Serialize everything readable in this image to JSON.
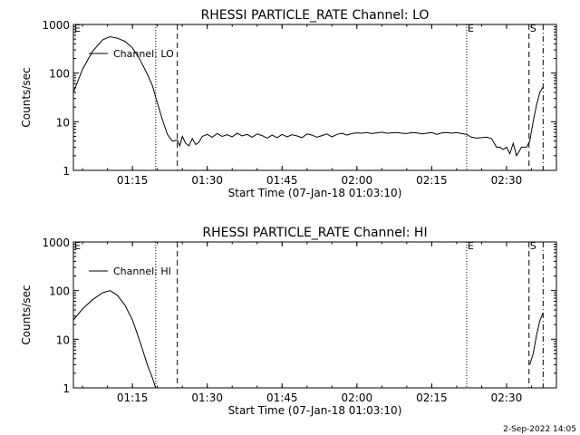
{
  "footer": {
    "date_text": "2-Sep-2022 14:05"
  },
  "chart_data": [
    {
      "type": "line",
      "title": "RHESSI PARTICLE_RATE Channel: LO",
      "xlabel": "Start Time (07-Jan-18 01:03:10)",
      "ylabel": "Counts/sec",
      "xlim": [
        "01:03:10",
        "02:40:00"
      ],
      "ylim": [
        1,
        1000
      ],
      "yscale": "log",
      "xticks": [
        "01:15",
        "01:30",
        "01:45",
        "02:00",
        "02:15",
        "02:30"
      ],
      "yticks": [
        "1",
        "10",
        "100",
        "1000"
      ],
      "legend": {
        "position": "top-left",
        "entries": [
          "Channel: LO"
        ]
      },
      "markers": [
        {
          "label": "E",
          "time": "01:03:10",
          "style": "dotted"
        },
        {
          "time": "01:19:40",
          "style": "dotted"
        },
        {
          "time": "01:24:00",
          "style": "dashed"
        },
        {
          "label": "E",
          "time": "02:22:00",
          "style": "dotted"
        },
        {
          "label": "S",
          "time": "02:34:30",
          "style": "dashed"
        },
        {
          "time": "02:37:20",
          "style": "dashdot"
        }
      ],
      "series": [
        {
          "name": "Channel: LO",
          "x": [
            "01:03:10",
            "01:05:00",
            "01:07:00",
            "01:09:00",
            "01:10:30",
            "01:12:00",
            "01:13:30",
            "01:15:00",
            "01:16:30",
            "01:18:00",
            "01:19:00",
            "01:20:00",
            "01:21:00",
            "01:22:00",
            "01:23:00",
            "01:24:00",
            "01:24:30",
            "01:25:00",
            "01:25:40",
            "01:26:20",
            "01:27:00",
            "01:27:40",
            "01:28:20",
            "01:29:00",
            "01:30:00",
            "01:31:00",
            "01:32:00",
            "01:33:00",
            "01:34:00",
            "01:35:00",
            "01:36:00",
            "01:37:00",
            "01:38:00",
            "01:39:00",
            "01:40:00",
            "01:41:00",
            "01:42:00",
            "01:43:00",
            "01:44:00",
            "01:45:00",
            "01:46:00",
            "01:47:00",
            "01:48:00",
            "01:49:00",
            "01:50:00",
            "01:51:00",
            "01:52:00",
            "01:53:00",
            "01:54:00",
            "01:55:00",
            "01:56:00",
            "01:57:00",
            "01:58:00",
            "01:59:00",
            "02:00:00",
            "02:01:00",
            "02:02:00",
            "02:03:00",
            "02:04:00",
            "02:05:00",
            "02:06:00",
            "02:07:00",
            "02:08:00",
            "02:09:00",
            "02:10:00",
            "02:11:00",
            "02:12:00",
            "02:13:00",
            "02:14:00",
            "02:15:00",
            "02:16:00",
            "02:17:00",
            "02:18:00",
            "02:19:00",
            "02:20:00",
            "02:21:00",
            "02:22:00",
            "02:23:00",
            "02:24:00",
            "02:25:00",
            "02:26:00",
            "02:27:00",
            "02:28:00",
            "02:28:40",
            "02:29:20",
            "02:30:00",
            "02:30:40",
            "02:31:20",
            "02:32:00",
            "02:33:00",
            "02:34:00",
            "02:34:40",
            "02:35:20",
            "02:36:00",
            "02:36:40",
            "02:37:20"
          ],
          "y": [
            40,
            120,
            280,
            480,
            560,
            520,
            450,
            330,
            190,
            95,
            55,
            24,
            11,
            5.5,
            4,
            4.2,
            3.2,
            5,
            3.6,
            3.2,
            4.5,
            3.4,
            3.8,
            5,
            5.5,
            4.8,
            5.7,
            5,
            5.4,
            4.9,
            5.8,
            5.1,
            5.5,
            4.8,
            5.6,
            5.2,
            4.6,
            5.3,
            4.7,
            5.5,
            4.9,
            5.4,
            5.1,
            4.7,
            5.6,
            5.3,
            4.8,
            5.2,
            5.6,
            4.9,
            5.5,
            5.8,
            5.3,
            5.7,
            5.9,
            5.8,
            6,
            5.7,
            5.9,
            6.1,
            5.8,
            5.9,
            6,
            5.8,
            5.7,
            6,
            5.9,
            5.6,
            5.8,
            6,
            5.5,
            5.9,
            6,
            5.8,
            6,
            5.7,
            5.5,
            4.8,
            4.6,
            4.7,
            4.8,
            4.5,
            3,
            3,
            2.7,
            3,
            2.2,
            3.6,
            2,
            3,
            3,
            4,
            10,
            22,
            40,
            52
          ]
        }
      ]
    },
    {
      "type": "line",
      "title": "RHESSI PARTICLE_RATE Channel: HI",
      "xlabel": "Start Time (07-Jan-18 01:03:10)",
      "ylabel": "Counts/sec",
      "xlim": [
        "01:03:10",
        "02:40:00"
      ],
      "ylim": [
        1,
        1000
      ],
      "yscale": "log",
      "xticks": [
        "01:15",
        "01:30",
        "01:45",
        "02:00",
        "02:15",
        "02:30"
      ],
      "yticks": [
        "1",
        "10",
        "100",
        "1000"
      ],
      "legend": {
        "position": "top-left",
        "entries": [
          "Channel: HI"
        ]
      },
      "markers": [
        {
          "label": "E",
          "time": "01:03:10",
          "style": "dotted"
        },
        {
          "time": "01:19:40",
          "style": "dotted"
        },
        {
          "time": "01:24:00",
          "style": "dashed"
        },
        {
          "label": "E",
          "time": "02:22:00",
          "style": "dotted"
        },
        {
          "label": "S",
          "time": "02:34:30",
          "style": "dashed"
        },
        {
          "time": "02:37:20",
          "style": "dashdot"
        }
      ],
      "series": [
        {
          "name": "Channel: HI",
          "x": [
            "01:03:10",
            "01:05:00",
            "01:07:00",
            "01:09:00",
            "01:10:30",
            "01:12:00",
            "01:13:30",
            "01:15:00",
            "01:16:30",
            "01:18:00",
            "01:19:00",
            "01:19:40"
          ],
          "y": [
            25,
            42,
            65,
            90,
            100,
            80,
            50,
            25,
            9,
            3,
            1.6,
            1
          ]
        },
        {
          "name": "Channel: HI",
          "x": [
            "02:34:40",
            "02:35:20",
            "02:36:00",
            "02:36:40",
            "02:37:20"
          ],
          "y": [
            3,
            5,
            12,
            24,
            35
          ]
        }
      ]
    }
  ]
}
